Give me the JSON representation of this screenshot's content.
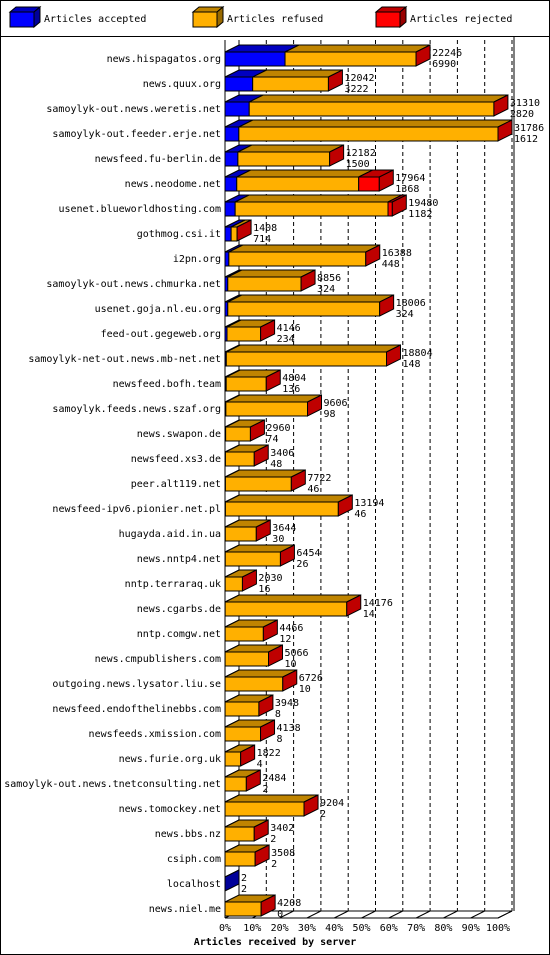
{
  "chart_data": {
    "type": "stacked-bar-3d-horizontal",
    "x_label": "Articles received by server",
    "categories": [
      "news.hispagatos.org",
      "news.quux.org",
      "samoylyk-out.news.weretis.net",
      "samoylyk-out.feeder.erje.net",
      "newsfeed.fu-berlin.de",
      "news.neodome.net",
      "usenet.blueworldhosting.com",
      "gothmog.csi.it",
      "i2pn.org",
      "samoylyk-out.news.chmurka.net",
      "usenet.goja.nl.eu.org",
      "feed-out.gegeweb.org",
      "samoylyk-net-out.news.mb-net.net",
      "newsfeed.bofh.team",
      "samoylyk.feeds.news.szaf.org",
      "news.swapon.de",
      "newsfeed.xs3.de",
      "peer.alt119.net",
      "newsfeed-ipv6.pionier.net.pl",
      "hugayda.aid.in.ua",
      "news.nntp4.net",
      "nntp.terraraq.uk",
      "news.cgarbs.de",
      "nntp.comgw.net",
      "news.cmpublishers.com",
      "outgoing.news.lysator.liu.se",
      "newsfeed.endofthelinebbs.com",
      "newsfeeds.xmission.com",
      "news.furie.org.uk",
      "samoylyk-out.news.tnetconsulting.net",
      "news.tomockey.net",
      "news.bbs.nz",
      "csiph.com",
      "localhost",
      "news.niel.me"
    ],
    "totals": [
      22246,
      12042,
      31310,
      31786,
      12182,
      17964,
      19480,
      1408,
      16388,
      8856,
      18006,
      4146,
      18804,
      4804,
      9606,
      2960,
      3406,
      7722,
      13194,
      3644,
      6454,
      2030,
      14176,
      4466,
      5066,
      6726,
      3948,
      4138,
      1822,
      2484,
      9204,
      3402,
      3508,
      2,
      4208
    ],
    "series": [
      {
        "name": "Articles accepted",
        "color": "#0000ff",
        "values": [
          6990,
          3222,
          2820,
          1612,
          1500,
          1368,
          1182,
          714,
          448,
          324,
          324,
          234,
          148,
          136,
          98,
          74,
          48,
          46,
          46,
          30,
          26,
          16,
          14,
          12,
          10,
          10,
          8,
          8,
          4,
          2,
          2,
          2,
          2,
          2,
          0
        ]
      },
      {
        "name": "Articles refused",
        "color": "#ffb000",
        "values": [
          15256,
          8820,
          28490,
          30174,
          10682,
          14196,
          17798,
          694,
          15940,
          8532,
          17682,
          3912,
          18656,
          4668,
          9508,
          2886,
          3358,
          7676,
          13148,
          3614,
          6428,
          2014,
          14162,
          4454,
          5056,
          6716,
          3940,
          4130,
          1818,
          2482,
          9202,
          3400,
          3506,
          0,
          4208
        ]
      },
      {
        "name": "Articles rejected",
        "color": "#ff0000",
        "values": [
          0,
          0,
          0,
          0,
          0,
          2400,
          500,
          0,
          0,
          0,
          0,
          0,
          0,
          0,
          0,
          0,
          0,
          0,
          0,
          0,
          0,
          0,
          0,
          0,
          0,
          0,
          0,
          0,
          0,
          0,
          0,
          0,
          0,
          0,
          0
        ]
      }
    ],
    "xlim": [
      0,
      31786
    ],
    "xticks": [
      {
        "value": 0,
        "label": "0%"
      },
      {
        "value": 3178.6,
        "label": "10%"
      },
      {
        "value": 6357.2,
        "label": "20%"
      },
      {
        "value": 9535.8,
        "label": "30%"
      },
      {
        "value": 12714.4,
        "label": "40%"
      },
      {
        "value": 15893,
        "label": "50%"
      },
      {
        "value": 19071.6,
        "label": "60%"
      },
      {
        "value": 22250.2,
        "label": "70%"
      },
      {
        "value": 25428.8,
        "label": "80%"
      },
      {
        "value": 28607.4,
        "label": "90%"
      },
      {
        "value": 31786,
        "label": "100%"
      }
    ],
    "grid": true
  }
}
